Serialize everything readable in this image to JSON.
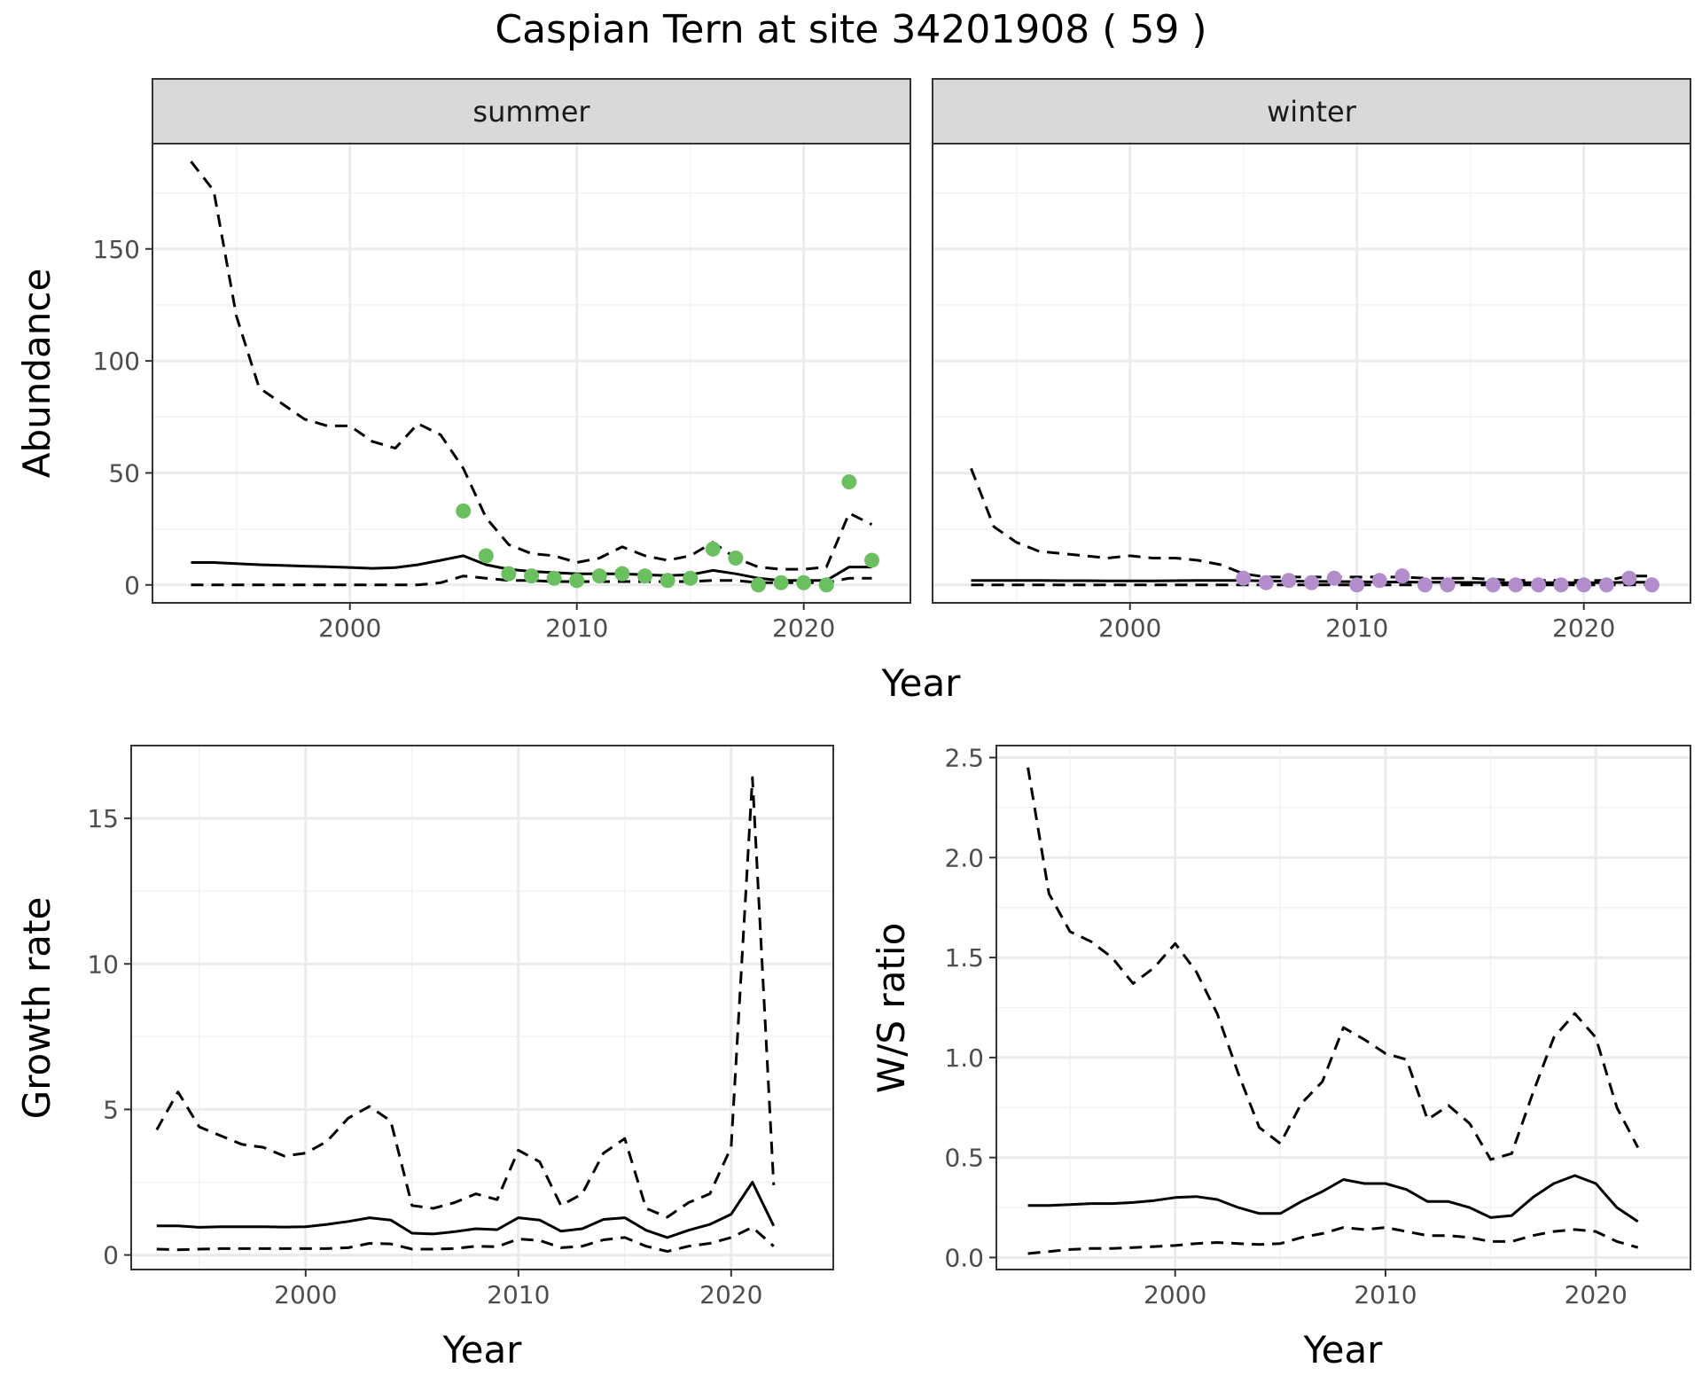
{
  "title": "Caspian Tern at site 34201908 ( 59 )",
  "chart_data": [
    {
      "id": "abundance",
      "type": "line",
      "panels": [
        "summer",
        "winter"
      ],
      "xlabel": "Year",
      "ylabel": "Abundance",
      "xlim": [
        1991.3,
        2024.7
      ],
      "ylim": [
        -8,
        197
      ],
      "xticks": [
        2000,
        2010,
        2020
      ],
      "yticks": [
        0,
        50,
        100,
        150
      ],
      "grid": true,
      "point_colors": {
        "summer": "#6abf5f",
        "winter": "#b38ccc"
      },
      "summer": {
        "x": [
          1993,
          1994,
          1995,
          1996,
          1997,
          1998,
          1999,
          2000,
          2001,
          2002,
          2003,
          2004,
          2005,
          2006,
          2007,
          2008,
          2009,
          2010,
          2011,
          2012,
          2013,
          2014,
          2015,
          2016,
          2017,
          2018,
          2019,
          2020,
          2021,
          2022,
          2023
        ],
        "mean": [
          10,
          10,
          9.5,
          9,
          8.7,
          8.4,
          8.1,
          7.8,
          7.4,
          7.7,
          9,
          11,
          13,
          9,
          7,
          6,
          5.5,
          5,
          5,
          5,
          4.5,
          4.2,
          4.5,
          6.5,
          5,
          3,
          2,
          2,
          2,
          8,
          8
        ],
        "upper": [
          189,
          176,
          120,
          88,
          81,
          74,
          71,
          71,
          64,
          61,
          72,
          67,
          52,
          30,
          18,
          14,
          13,
          10,
          12,
          17,
          13,
          11,
          13,
          19,
          12,
          8,
          7,
          7,
          8,
          32,
          27
        ],
        "lower": [
          0,
          0,
          0,
          0,
          0,
          0,
          0,
          0,
          0,
          0,
          0,
          1,
          4,
          3,
          2,
          2,
          1.5,
          1.5,
          1.5,
          1.5,
          1.5,
          1.5,
          1.5,
          2,
          2,
          1,
          1,
          1,
          1,
          3,
          3
        ],
        "obs_x": [
          2005,
          2006,
          2007,
          2008,
          2009,
          2010,
          2011,
          2012,
          2013,
          2014,
          2015,
          2016,
          2017,
          2018,
          2019,
          2020,
          2021,
          2022,
          2023
        ],
        "obs_y": [
          33,
          13,
          5,
          4,
          3,
          2,
          4,
          5,
          4,
          2,
          3,
          16,
          12,
          0,
          1,
          1,
          0,
          46,
          11
        ]
      },
      "winter": {
        "x": [
          1993,
          1994,
          1995,
          1996,
          1997,
          1998,
          1999,
          2000,
          2001,
          2002,
          2003,
          2004,
          2005,
          2006,
          2007,
          2008,
          2009,
          2010,
          2011,
          2012,
          2013,
          2014,
          2015,
          2016,
          2017,
          2018,
          2019,
          2020,
          2021,
          2022,
          2023
        ],
        "mean": [
          2,
          2,
          2,
          2,
          1.9,
          1.9,
          1.8,
          1.8,
          1.8,
          1.9,
          2,
          2,
          2,
          1.8,
          1.7,
          1.6,
          1.5,
          1.4,
          1.3,
          1.3,
          1.2,
          1.2,
          1.1,
          1,
          1,
          1,
          1,
          1,
          1,
          1.2,
          1.2
        ],
        "upper": [
          52,
          26,
          19,
          15,
          14,
          13,
          12,
          13,
          12,
          12,
          11,
          9,
          5,
          3.5,
          3.5,
          3.5,
          3.5,
          3.5,
          3.5,
          3.5,
          3,
          3,
          3,
          2.5,
          2,
          2,
          2,
          2,
          2,
          4,
          4
        ],
        "lower": [
          0,
          0,
          0,
          0,
          0,
          0,
          0,
          0,
          0,
          0,
          0,
          0,
          0,
          0,
          0,
          0,
          0,
          0,
          0,
          0,
          0,
          0,
          0,
          0,
          0,
          0,
          0,
          0,
          0,
          0,
          0
        ],
        "obs_x": [
          2005,
          2006,
          2007,
          2008,
          2009,
          2010,
          2011,
          2012,
          2013,
          2014,
          2016,
          2017,
          2018,
          2019,
          2020,
          2021,
          2022,
          2023
        ],
        "obs_y": [
          3,
          1,
          2,
          1,
          3,
          0,
          2,
          4,
          0,
          0,
          0,
          0,
          0,
          0,
          0,
          0,
          3,
          0
        ]
      }
    },
    {
      "id": "growth",
      "type": "line",
      "xlabel": "Year",
      "ylabel": "Growth rate",
      "xlim": [
        1991.8,
        2024.8
      ],
      "ylim": [
        -0.5,
        17.5
      ],
      "xticks": [
        2000,
        2010,
        2020
      ],
      "yticks": [
        0,
        5,
        10,
        15
      ],
      "grid": true,
      "x": [
        1993,
        1994,
        1995,
        1996,
        1997,
        1998,
        1999,
        2000,
        2001,
        2002,
        2003,
        2004,
        2005,
        2006,
        2007,
        2008,
        2009,
        2010,
        2011,
        2012,
        2013,
        2014,
        2015,
        2016,
        2017,
        2018,
        2019,
        2020,
        2021,
        2022
      ],
      "mean": [
        1,
        1,
        0.95,
        0.97,
        0.97,
        0.97,
        0.96,
        0.97,
        1.05,
        1.15,
        1.28,
        1.2,
        0.75,
        0.72,
        0.8,
        0.9,
        0.87,
        1.28,
        1.2,
        0.82,
        0.9,
        1.22,
        1.28,
        0.85,
        0.6,
        0.85,
        1.05,
        1.4,
        2.5,
        1.0
      ],
      "upper": [
        4.3,
        5.6,
        4.4,
        4.1,
        3.8,
        3.7,
        3.4,
        3.5,
        3.9,
        4.7,
        5.1,
        4.6,
        1.7,
        1.6,
        1.8,
        2.1,
        1.9,
        3.6,
        3.2,
        1.7,
        2.1,
        3.5,
        4.0,
        1.6,
        1.3,
        1.8,
        2.1,
        3.7,
        16.4,
        2.4
      ],
      "lower": [
        0.2,
        0.18,
        0.2,
        0.22,
        0.22,
        0.22,
        0.22,
        0.22,
        0.22,
        0.25,
        0.4,
        0.38,
        0.2,
        0.2,
        0.22,
        0.3,
        0.28,
        0.55,
        0.5,
        0.25,
        0.3,
        0.52,
        0.6,
        0.3,
        0.12,
        0.3,
        0.4,
        0.6,
        0.95,
        0.3
      ]
    },
    {
      "id": "ratio",
      "type": "line",
      "xlabel": "Year",
      "ylabel": "W/S ratio",
      "xlim": [
        1991.5,
        2024.5
      ],
      "ylim": [
        -0.06,
        2.56
      ],
      "xticks": [
        2000,
        2010,
        2020
      ],
      "yticks": [
        0.0,
        0.5,
        1.0,
        1.5,
        2.0,
        2.5
      ],
      "ytick_labels": [
        "0.0",
        "0.5",
        "1.0",
        "1.5",
        "2.0",
        "2.5"
      ],
      "grid": true,
      "x": [
        1993,
        1994,
        1995,
        1996,
        1997,
        1998,
        1999,
        2000,
        2001,
        2002,
        2003,
        2004,
        2005,
        2006,
        2007,
        2008,
        2009,
        2010,
        2011,
        2012,
        2013,
        2014,
        2015,
        2016,
        2017,
        2018,
        2019,
        2020,
        2021,
        2022
      ],
      "mean": [
        0.26,
        0.26,
        0.265,
        0.27,
        0.27,
        0.275,
        0.285,
        0.3,
        0.305,
        0.29,
        0.25,
        0.22,
        0.22,
        0.28,
        0.33,
        0.39,
        0.37,
        0.37,
        0.34,
        0.28,
        0.28,
        0.25,
        0.2,
        0.21,
        0.3,
        0.37,
        0.41,
        0.37,
        0.25,
        0.18
      ],
      "upper": [
        2.45,
        1.82,
        1.63,
        1.58,
        1.5,
        1.37,
        1.45,
        1.57,
        1.43,
        1.22,
        0.92,
        0.65,
        0.57,
        0.77,
        0.88,
        1.15,
        1.09,
        1.02,
        0.99,
        0.69,
        0.76,
        0.67,
        0.49,
        0.52,
        0.82,
        1.1,
        1.22,
        1.1,
        0.75,
        0.55
      ],
      "lower": [
        0.02,
        0.03,
        0.04,
        0.045,
        0.045,
        0.05,
        0.055,
        0.06,
        0.07,
        0.075,
        0.07,
        0.065,
        0.07,
        0.1,
        0.12,
        0.15,
        0.14,
        0.15,
        0.13,
        0.11,
        0.11,
        0.1,
        0.08,
        0.08,
        0.11,
        0.13,
        0.14,
        0.13,
        0.08,
        0.05
      ]
    }
  ]
}
